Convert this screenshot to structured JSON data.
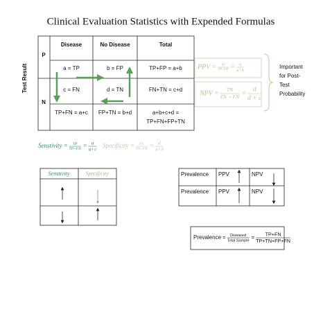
{
  "title": "Clinical Evaluation Statistics with Expended Formulas",
  "table": {
    "side_label": "Test Result",
    "header": [
      "Disease",
      "No Disease",
      "Total"
    ],
    "row_labels": [
      "P",
      "N"
    ],
    "rows": [
      [
        "a = TP",
        "b = FP",
        "TP+FP = a+b"
      ],
      [
        "c = FN",
        "d = TN",
        "FN+TN = c+d"
      ],
      [
        "TP+FN = a+c",
        "FP+TN = b+d",
        [
          "a+b+c+d =",
          "TP+FN+FP+TN"
        ]
      ]
    ]
  },
  "formulas": {
    "ppv": {
      "name": "PPV",
      "eq": "=",
      "num1": "TP",
      "den1": "TP+FP",
      "num2": "a",
      "den2": "a+b"
    },
    "npv": {
      "name": "NPV",
      "eq": "=",
      "num1": "TN",
      "den1": "TN + FN",
      "num2": "d",
      "den2": "d + c"
    },
    "sensitivity": {
      "name": "Senstivity",
      "eq": "=",
      "num1": "TP",
      "den1": "TP+FN",
      "num2": "a",
      "den2": "a+c"
    },
    "specificity": {
      "name": "Specificity",
      "eq": "=",
      "num1": "TN",
      "den1": "TN+FP",
      "num2": "d",
      "den2": "d+b"
    },
    "prevalence": {
      "name": "Prevalence",
      "eq": "=",
      "num1": "Diseased",
      "den1": "Total Sample",
      "num2": "TP+FN",
      "den2": "TP+TN+FP+FN"
    }
  },
  "note": [
    "Important",
    "for Post-",
    "Test",
    "Probability"
  ],
  "left_table": {
    "header": [
      "Senstivity",
      "Specificity"
    ]
  },
  "right_table": {
    "rows": [
      [
        "Prevalence",
        "PPV",
        "NPV"
      ],
      [
        "Prevalence",
        "PPV",
        "NPV"
      ]
    ]
  }
}
